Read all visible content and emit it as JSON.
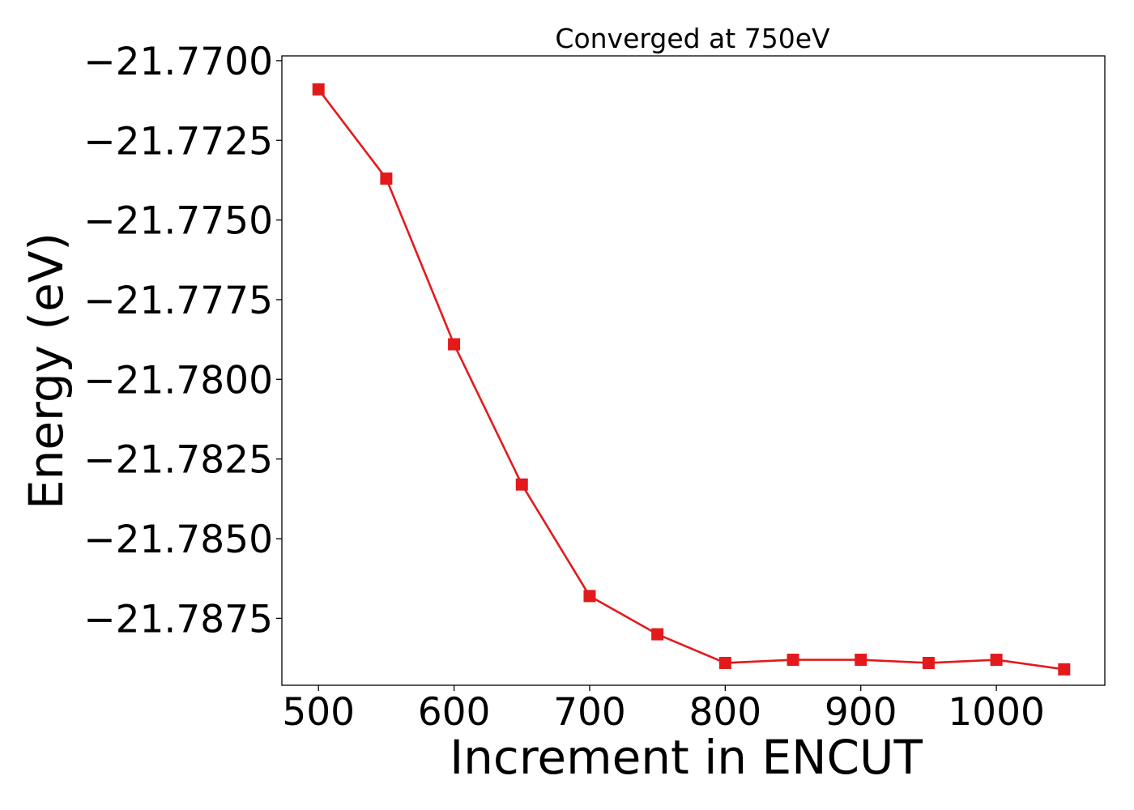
{
  "chart_data": {
    "type": "line",
    "title": "Converged at 750eV",
    "xlabel": "Increment in ENCUT",
    "ylabel": "Energy (eV)",
    "x": [
      500,
      550,
      600,
      650,
      700,
      750,
      800,
      850,
      900,
      950,
      1000,
      1050
    ],
    "series": [
      {
        "values": [
          -21.7709,
          -21.7737,
          -21.7789,
          -21.7833,
          -21.7868,
          -21.788,
          -21.7889,
          -21.7888,
          -21.7888,
          -21.7889,
          -21.7888,
          -21.7891
        ],
        "color": "#e31a1c",
        "marker": "square"
      }
    ],
    "xlim": [
      473,
      1080
    ],
    "ylim": [
      -21.7896,
      -21.76985
    ],
    "xticks": [
      500,
      600,
      700,
      800,
      900,
      1000
    ],
    "xtick_labels": [
      "500",
      "600",
      "700",
      "800",
      "900",
      "1000"
    ],
    "yticks": [
      -21.77,
      -21.7725,
      -21.775,
      -21.7775,
      -21.78,
      -21.7825,
      -21.785,
      -21.7875
    ],
    "ytick_labels": [
      "−21.7700",
      "−21.7725",
      "−21.7750",
      "−21.7775",
      "−21.7800",
      "−21.7825",
      "−21.7850",
      "−21.7875"
    ],
    "grid": false,
    "legend": false
  }
}
